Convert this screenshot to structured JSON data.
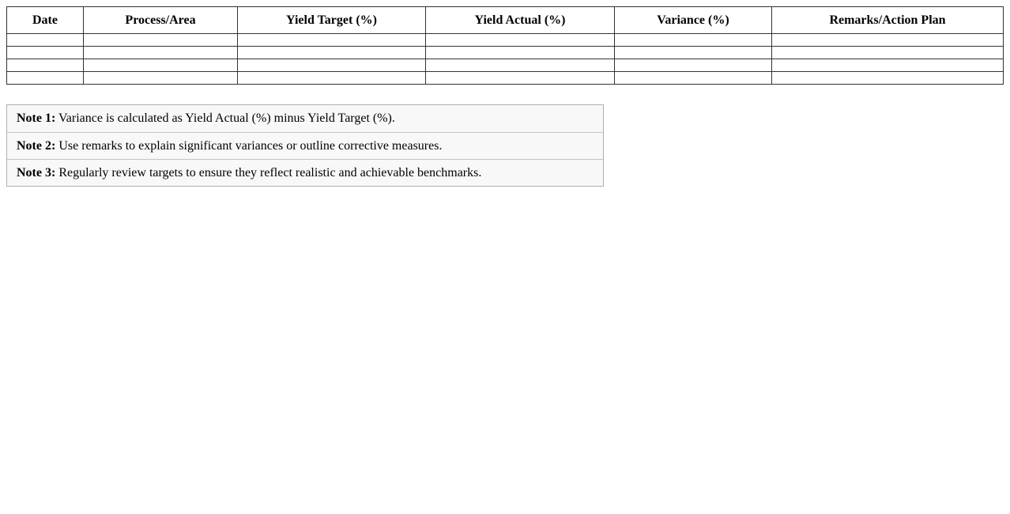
{
  "table": {
    "headers": [
      "Date",
      "Process/Area",
      "Yield Target (%)",
      "Yield Actual (%)",
      "Variance (%)",
      "Remarks/Action Plan"
    ],
    "rows": [
      [
        "",
        "",
        "",
        "",
        "",
        ""
      ],
      [
        "",
        "",
        "",
        "",
        "",
        ""
      ],
      [
        "",
        "",
        "",
        "",
        "",
        ""
      ],
      [
        "",
        "",
        "",
        "",
        "",
        ""
      ]
    ]
  },
  "notes": [
    {
      "label": "Note 1:",
      "text": " Variance is calculated as Yield Actual (%) minus Yield Target (%)."
    },
    {
      "label": "Note 2:",
      "text": " Use remarks to explain significant variances or outline corrective measures."
    },
    {
      "label": "Note 3:",
      "text": " Regularly review targets to ensure they reflect realistic and achievable benchmarks."
    }
  ]
}
